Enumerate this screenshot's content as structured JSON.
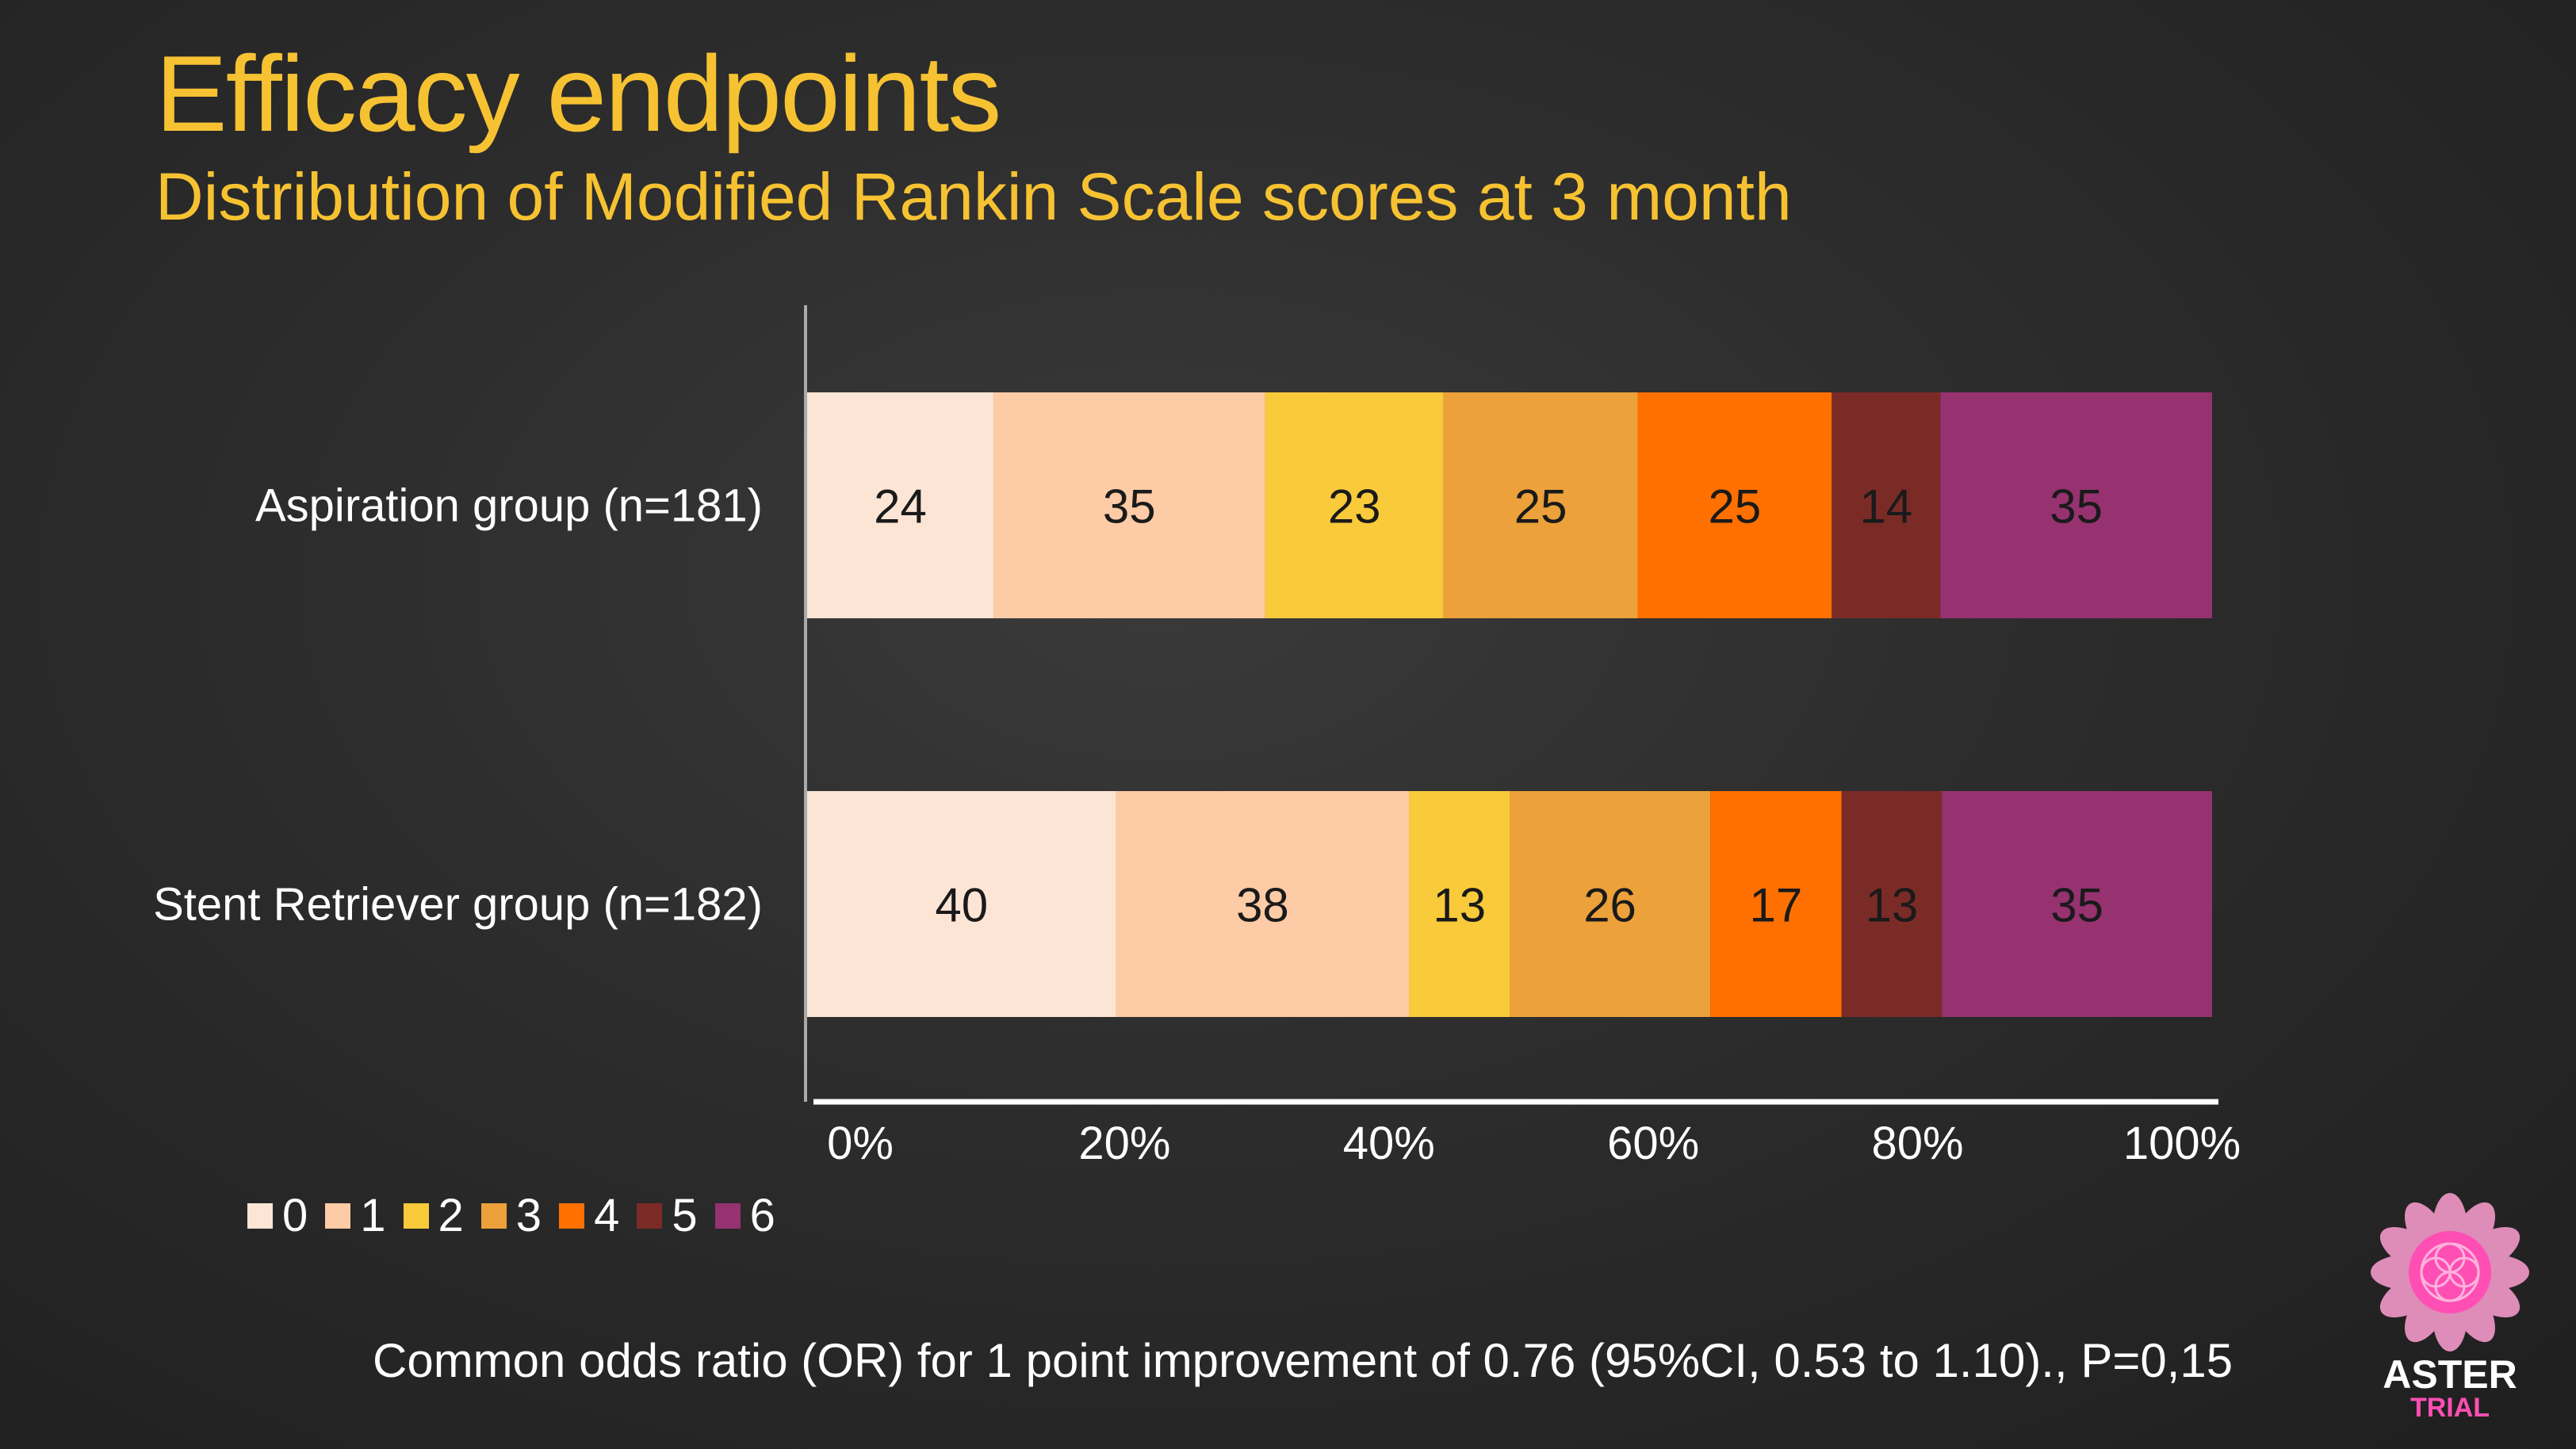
{
  "header": {
    "title": "Efficacy endpoints",
    "subtitle": "Distribution of Modified Rankin Scale scores at 3 month"
  },
  "chart_data": {
    "type": "bar",
    "orientation": "horizontal",
    "stacked": "percent",
    "title": "Distribution of Modified Rankin Scale scores at 3 month",
    "xlabel": "",
    "ylabel": "",
    "xlim": [
      0,
      100
    ],
    "x_ticks": [
      "0%",
      "20%",
      "40%",
      "60%",
      "80%",
      "100%"
    ],
    "categories": [
      "Aspiration group (n=181)",
      "Stent Retriever group (n=182)"
    ],
    "series": [
      {
        "name": "0",
        "color": "#fde5d5",
        "values": [
          24,
          40
        ]
      },
      {
        "name": "1",
        "color": "#fdcba5",
        "values": [
          35,
          38
        ]
      },
      {
        "name": "2",
        "color": "#f9ca3a",
        "values": [
          23,
          13
        ]
      },
      {
        "name": "3",
        "color": "#eca13a",
        "values": [
          25,
          26
        ]
      },
      {
        "name": "4",
        "color": "#ff7000",
        "values": [
          25,
          17
        ]
      },
      {
        "name": "5",
        "color": "#7b2b26",
        "values": [
          14,
          13
        ]
      },
      {
        "name": "6",
        "color": "#963270",
        "values": [
          35,
          35
        ]
      }
    ],
    "legend_position": "bottom-left",
    "grid": false
  },
  "footnote": "Common odds ratio (OR) for 1 point improvement of 0.76 (95%CI, 0.53 to 1.10)., P=0,15",
  "logo": {
    "name": "ASTER",
    "sub": "TRIAL"
  },
  "colors": {
    "title": "#f6c232",
    "background": "#2c2c2c",
    "logo_pink": "#ff4fb4"
  }
}
